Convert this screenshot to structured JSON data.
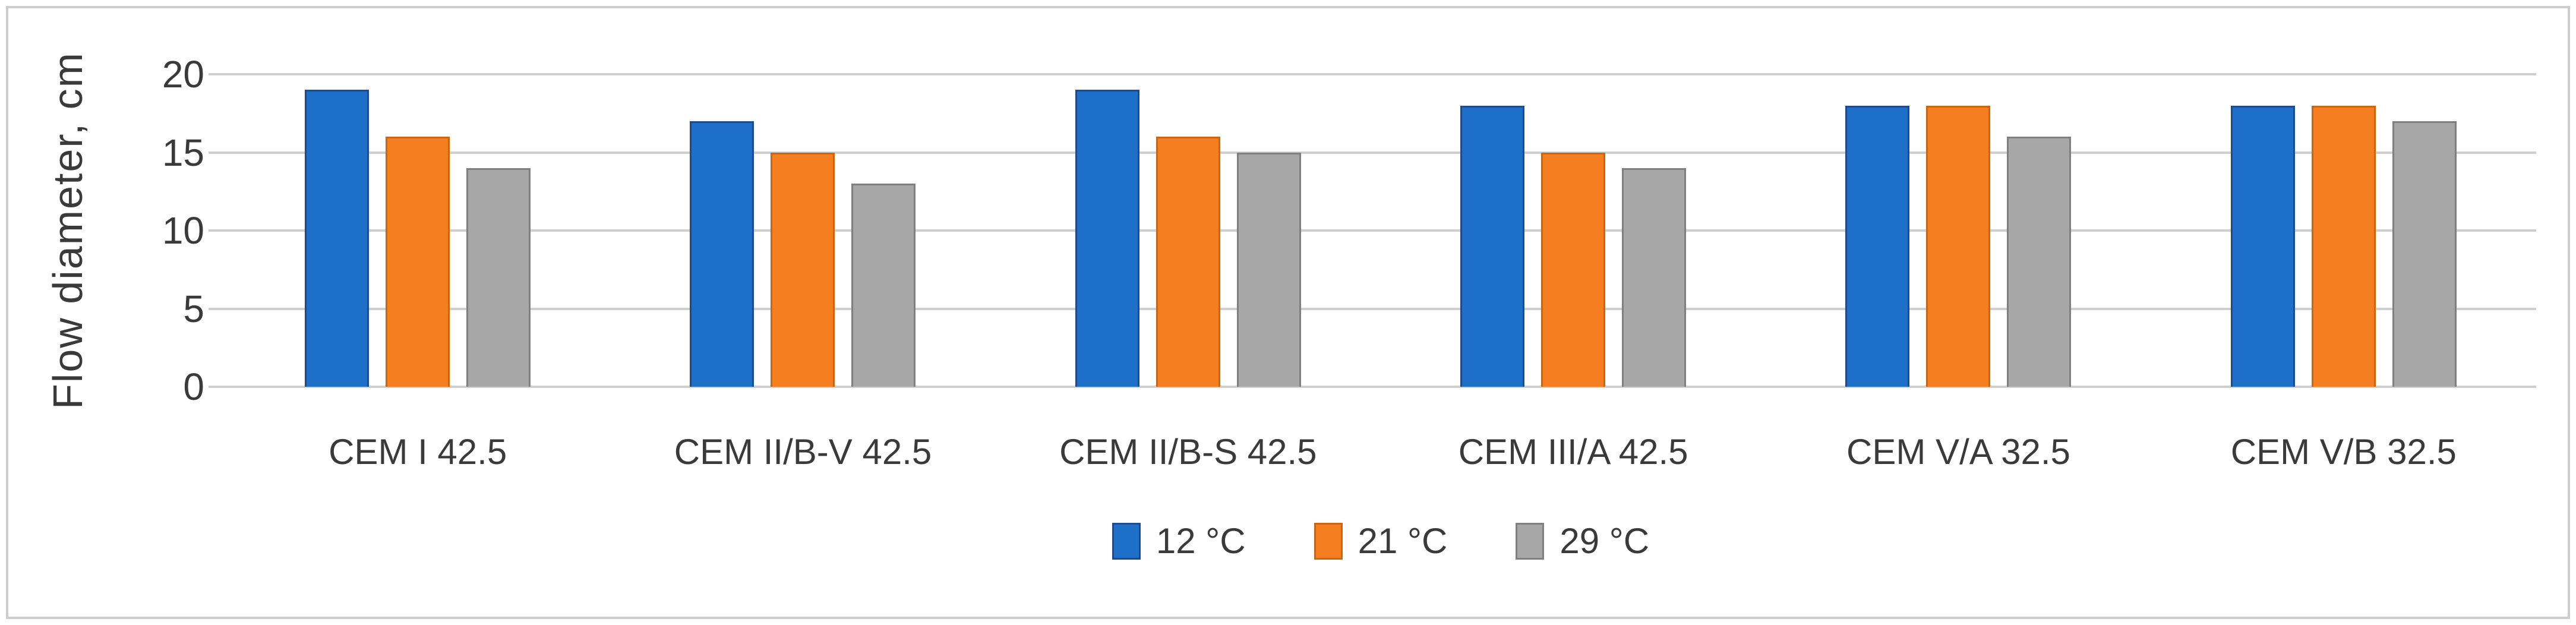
{
  "colors": {
    "text": "#3a3a3a",
    "gridline": "#cfcfcf",
    "figure_border": "#cdcdcd",
    "background": "#ffffff"
  },
  "chart_data": {
    "type": "bar",
    "title": "",
    "ylabel": "Flow diameter, cm",
    "xlabel": "",
    "ylim": [
      0,
      20
    ],
    "yticks": [
      0,
      5,
      10,
      15,
      20
    ],
    "grid": true,
    "legend_position": "bottom",
    "categories": [
      "CEM I 42.5",
      "CEM II/B-V 42.5",
      "CEM II/B-S 42.5",
      "CEM III/A 42.5",
      "CEM V/A 32.5",
      "CEM V/B 32.5"
    ],
    "series": [
      {
        "name": "12 °C",
        "color": "#1e6fc8",
        "border_color": "#1c4c8f",
        "values": [
          19,
          17,
          19,
          18,
          18,
          18
        ]
      },
      {
        "name": "21 °C",
        "color": "#f57e20",
        "border_color": "#c9660f",
        "values": [
          16,
          15,
          16,
          15,
          18,
          18
        ]
      },
      {
        "name": "29 °C",
        "color": "#a7a7a7",
        "border_color": "#7f7f7f",
        "values": [
          14,
          13,
          15,
          14,
          16,
          17
        ]
      }
    ]
  }
}
